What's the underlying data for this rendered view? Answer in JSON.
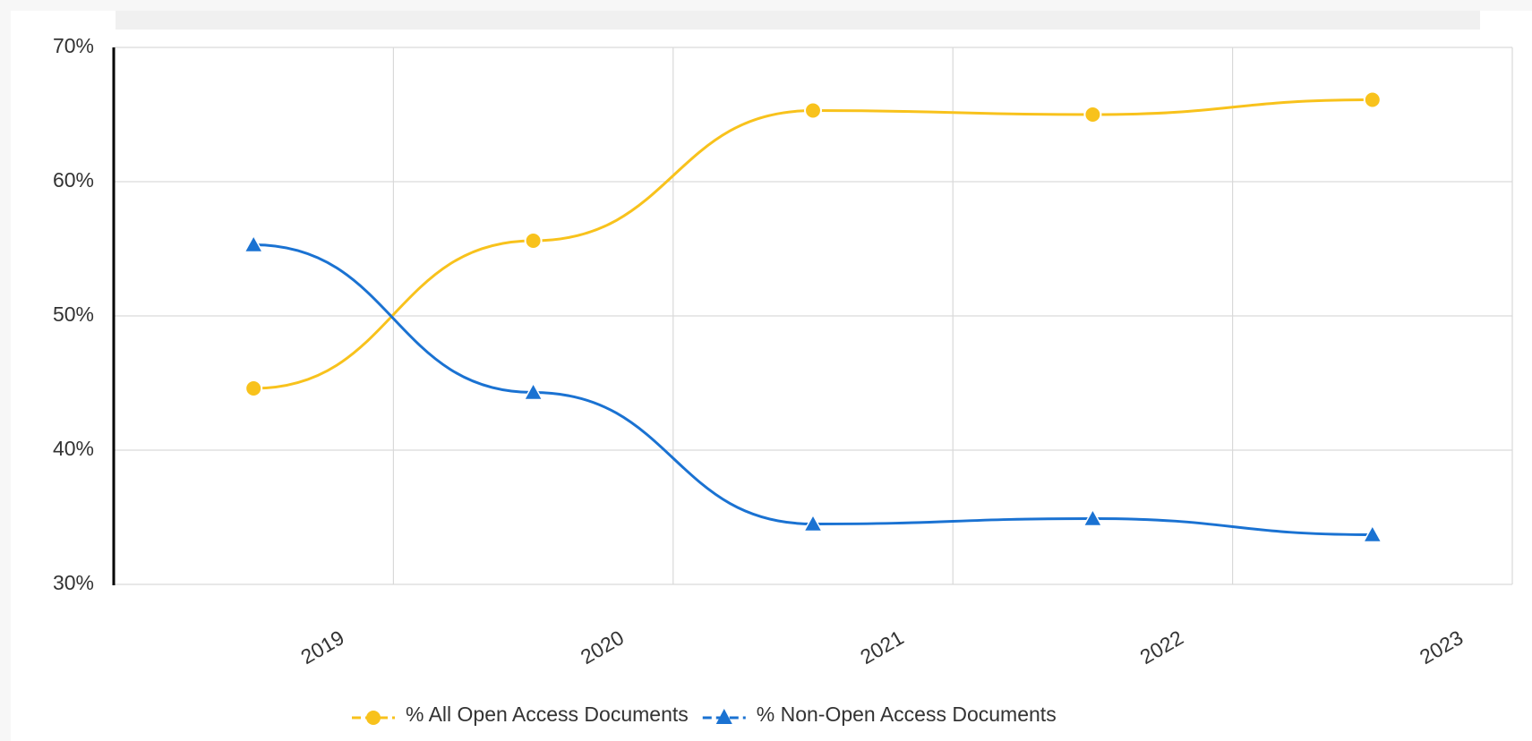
{
  "chart_data": {
    "type": "line",
    "categories": [
      "2019",
      "2020",
      "2021",
      "2022",
      "2023"
    ],
    "series": [
      {
        "name": "% All Open Access Documents",
        "color": "#f8c21c",
        "marker": "circle",
        "values": [
          44.6,
          55.6,
          65.3,
          65.0,
          66.1
        ]
      },
      {
        "name": "% Non-Open Access Documents",
        "color": "#1a72d2",
        "marker": "triangle",
        "values": [
          55.3,
          44.3,
          34.5,
          34.9,
          33.7
        ]
      }
    ],
    "ylim": [
      30,
      70
    ],
    "yticks": [
      {
        "value": 30,
        "label": "30%"
      },
      {
        "value": 40,
        "label": "40%"
      },
      {
        "value": 50,
        "label": "50%"
      },
      {
        "value": 60,
        "label": "60%"
      },
      {
        "value": 70,
        "label": "70%"
      }
    ],
    "grid": true,
    "legend": "bottom"
  }
}
